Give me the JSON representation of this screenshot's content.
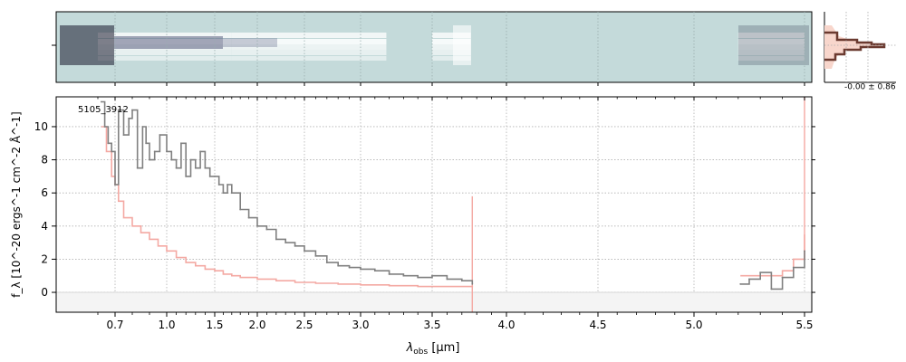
{
  "chart_data": {
    "type": "line",
    "spectrum_id": "5105_3912",
    "xlabel_main": "λ",
    "xlabel_sub": "obs",
    "xlabel_unit": " [μm]",
    "ylabel": "f_λ [10^-20 ergs^-1 cm^-2 Å^-1]",
    "x_ticks": [
      "0.7",
      "1.0",
      "1.5",
      "2.0",
      "2.5",
      "3.0",
      "3.5",
      "4.0",
      "4.5",
      "5.0",
      "5.5"
    ],
    "x_tick_values": [
      0.7,
      1.0,
      1.5,
      2.0,
      2.5,
      3.0,
      3.5,
      4.0,
      4.5,
      5.0,
      5.5
    ],
    "y_ticks": [
      "0",
      "2",
      "4",
      "6",
      "8",
      "10"
    ],
    "y_tick_values": [
      0,
      2,
      4,
      6,
      8,
      10
    ],
    "ylim": [
      -1.2,
      11.8
    ],
    "grid": true,
    "noise_label": "-0.00 ± 0.86",
    "colors": {
      "spectrum": "#808080",
      "model": "#f4a9a3",
      "model_dark": "#c04040",
      "band_bg": "#c4dada",
      "profile": "#6b3a30",
      "profile_fill": "#f8d6cc"
    },
    "series": [
      {
        "name": "",
        "x": [
          0.62,
          0.64,
          0.66,
          0.68,
          0.7,
          0.72,
          0.75,
          0.78,
          0.8,
          0.83,
          0.86,
          0.88,
          0.9,
          0.93,
          0.96,
          1.0,
          1.05,
          1.1,
          1.15,
          1.2,
          1.25,
          1.3,
          1.35,
          1.4,
          1.45,
          1.5,
          1.55,
          1.6,
          1.65,
          1.7,
          1.8,
          1.9,
          2.0,
          2.1,
          2.2,
          2.3,
          2.4,
          2.5,
          2.6,
          2.7,
          2.8,
          2.9,
          3.0,
          3.1,
          3.2,
          3.3,
          3.4,
          3.5,
          3.6,
          3.7,
          3.77,
          5.21,
          5.25,
          5.3,
          5.35,
          5.4,
          5.45,
          5.5
        ],
        "values": [
          11.5,
          10.0,
          9.0,
          8.5,
          6.5,
          11.0,
          9.5,
          10.5,
          11.0,
          7.5,
          10.0,
          9.0,
          8.0,
          8.5,
          9.5,
          8.5,
          8.0,
          7.5,
          9.0,
          7.0,
          8.0,
          7.5,
          8.5,
          7.5,
          7.0,
          7.0,
          6.5,
          6.0,
          6.5,
          6.0,
          5.0,
          4.5,
          4.0,
          3.8,
          3.2,
          3.0,
          2.8,
          2.5,
          2.2,
          1.8,
          1.6,
          1.5,
          1.4,
          1.3,
          1.1,
          1.0,
          0.9,
          1.0,
          0.8,
          0.7,
          0.5,
          0.5,
          0.8,
          1.2,
          0.2,
          0.9,
          1.5,
          2.5
        ]
      },
      {
        "name": "",
        "x": [
          0.62,
          0.65,
          0.68,
          0.7,
          0.72,
          0.75,
          0.8,
          0.85,
          0.9,
          0.95,
          1.0,
          1.1,
          1.2,
          1.3,
          1.4,
          1.5,
          1.6,
          1.7,
          1.8,
          2.0,
          2.2,
          2.4,
          2.6,
          2.8,
          3.0,
          3.2,
          3.4,
          3.6,
          3.77,
          5.21,
          5.3,
          5.4,
          5.45,
          5.5
        ],
        "values": [
          10.0,
          8.5,
          7.0,
          6.5,
          5.5,
          4.5,
          4.0,
          3.6,
          3.2,
          2.8,
          2.5,
          2.1,
          1.8,
          1.6,
          1.4,
          1.3,
          1.1,
          1.0,
          0.9,
          0.8,
          0.7,
          0.6,
          0.55,
          0.5,
          0.45,
          0.4,
          0.35,
          0.35,
          0.3,
          1.0,
          1.0,
          1.3,
          2.0,
          3.5
        ]
      }
    ]
  }
}
